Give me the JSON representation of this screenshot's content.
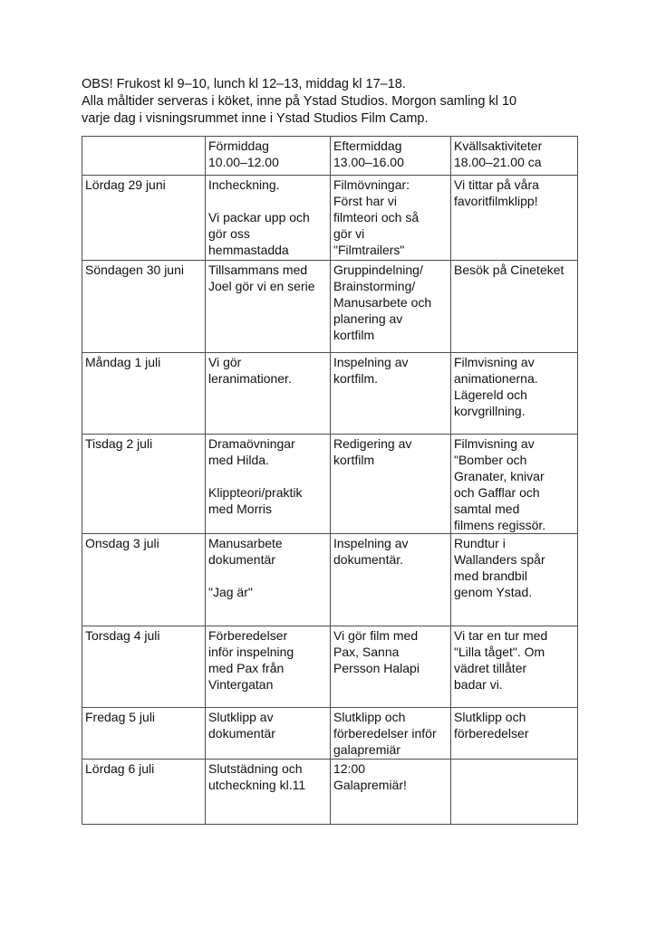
{
  "colors": {
    "background": "#ffffff",
    "text": "#111111",
    "table_border": "#4d4d4d"
  },
  "intro": {
    "text": "OBS! Frukost kl 9–10, lunch kl 12–13, middag kl 17–18.\nAlla måltider serveras i köket, inne på Ystad Studios. Morgon samling kl 10\nvarje dag i visningsrummet inne i Ystad Studios Film Camp."
  },
  "table": {
    "columns": [
      "",
      "Förmiddag\n10.00–12.00",
      "Eftermiddag\n13.00–16.00",
      "Kvällsaktiviteter\n18.00–21.00 ca"
    ],
    "rows": [
      {
        "day": "Lördag 29 juni",
        "morning": "Incheckning.\n\nVi packar upp och\ngör oss\nhemmastadda",
        "afternoon": "Filmövningar:\nFörst har vi\nfilmteori och så\ngör vi\n\"Filmtrailers\"",
        "evening": "Vi tittar på våra\nfavoritfilmklipp!"
      },
      {
        "day": "Söndagen 30 juni",
        "morning": "Tillsammans med\nJoel gör vi en serie",
        "afternoon": "Gruppindelning/\nBrainstorming/\nManusarbete och\nplanering av\nkortfilm",
        "evening": "Besök på Cineteket"
      },
      {
        "day": "Måndag 1 juli",
        "morning": "Vi gör\nleranimationer.",
        "afternoon": "Inspelning av\nkortfilm.",
        "evening": "Filmvisning av\nanimationerna.\nLägereld och\nkorvgrillning."
      },
      {
        "day": "Tisdag 2 juli",
        "morning": "Dramaövningar\nmed Hilda.\n\nKlippteori/praktik\nmed Morris",
        "afternoon": "Redigering av\nkortfilm",
        "evening": "Filmvisning av\n\"Bomber och\nGranater, knivar\noch Gafflar och\nsamtal med\nfilmens regissör."
      },
      {
        "day": "Onsdag 3 juli",
        "morning": "Manusarbete\ndokumentär\n\n\"Jag är\"",
        "afternoon": "Inspelning av\ndokumentär.",
        "evening": "Rundtur i\nWallanders spår\nmed brandbil\ngenom Ystad."
      },
      {
        "day": "Torsdag 4 juli",
        "morning": "Förberedelser\ninför inspelning\nmed Pax från\nVintergatan",
        "afternoon": "Vi gör film med\nPax, Sanna\nPersson Halapi",
        "evening": "Vi tar en tur med\n\"Lilla tåget\". Om\nvädret tillåter\nbadar vi."
      },
      {
        "day": "Fredag 5 juli",
        "morning": "Slutklipp av\ndokumentär",
        "afternoon": "Slutklipp och\nförberedelser inför\ngalapremiär",
        "evening": "Slutklipp och\nförberedelser"
      },
      {
        "day": "Lördag 6 juli",
        "morning": "Slutstädning och\nutcheckning kl.11",
        "afternoon": "12:00\nGalapremiär!",
        "evening": ""
      }
    ]
  }
}
